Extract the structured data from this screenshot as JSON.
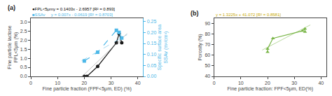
{
  "chart_data": [
    {
      "type": "line",
      "title": "(a)",
      "x_label": "Fine particle fraction (FPF<5μm, ED) (%)",
      "y_label": "Fine particle lactose\nFPL<5μm (%)",
      "y2_label": "Specific surface area\nSSAv (m²/cm³)",
      "xlim": [
        0,
        42
      ],
      "ylim": [
        0,
        3.2
      ],
      "y2lim": [
        0,
        0.265
      ],
      "xticks": [
        0,
        10,
        20,
        30,
        40
      ],
      "yticks": [
        {
          "value": 0,
          "label": "0.0"
        },
        0.5,
        {
          "value": 1.0,
          "label": "1.0"
        },
        1.5,
        {
          "value": 2.0,
          "label": "2.0"
        },
        2.5,
        {
          "value": 3.0,
          "label": "3.0"
        }
      ],
      "y2ticks": [
        {
          "value": 0,
          "label": "0.00"
        },
        0.05,
        {
          "value": 0.1,
          "label": "0.10"
        },
        0.15,
        {
          "value": 0.2,
          "label": "0.20"
        },
        0.25
      ],
      "grid": false,
      "series": [
        {
          "x": [
            20,
            21,
            25,
            32,
            33,
            34
          ],
          "values": [
            0.0,
            0.0,
            0.55,
            1.85,
            2.35,
            1.85
          ],
          "color": "#1a1a1a",
          "marker": "circle",
          "line_style": "solid"
        },
        {
          "x": [
            19,
            19.2138,
            36
          ],
          "values": [
            0,
            0,
            2.3551
          ],
          "color": "#888888",
          "marker": "none",
          "line_style": "solid"
        },
        {
          "x": [
            20,
            25,
            32,
            33,
            34
          ],
          "values": [
            0.07,
            0.11,
            0.21,
            0.2,
            0.175
          ],
          "color": "#4db8e8",
          "marker": "square",
          "line_style": "dashed",
          "axis": "y2"
        },
        {
          "x": [
            19,
            36
          ],
          "values": [
            0.0711,
            0.1901
          ],
          "color": "#4db8e8",
          "marker": "none",
          "line_style": "dashed",
          "axis": "y2"
        }
      ],
      "annotations": [
        {
          "text": "●FPL<5μmy = 0.1403x - 2.6957 [R² = 0.893]",
          "color": "#000000"
        },
        {
          "text": "■SSAv     y = 0.007x - 0.0619 [R² = 0.8703]",
          "color": "#4db8e8"
        }
      ]
    },
    {
      "type": "line",
      "title": "(b)",
      "x_label": "Fine particle fraction: FPF<5μm, ED(%)",
      "y_label": "Porosity (%)",
      "xlim": [
        0,
        42
      ],
      "ylim": [
        40,
        95
      ],
      "xticks": [
        0,
        10,
        20,
        30,
        40
      ],
      "yticks": [
        40,
        50,
        60,
        70,
        80,
        90
      ],
      "grid": false,
      "series": [
        {
          "x": [
            20,
            20,
            22,
            33,
            34,
            34
          ],
          "values": [
            63,
            66,
            76,
            83,
            85,
            82
          ],
          "color": "#7ab648",
          "marker": "triangle-up",
          "line_style": "solid"
        },
        {
          "x": [
            18,
            36
          ],
          "values": [
            64.877,
            88.682
          ],
          "color": "#7ab648",
          "marker": "none",
          "line_style": "solid"
        }
      ],
      "annotations": [
        {
          "text": "y = 1.3225x + 41.072 [R² = 0.8581]",
          "color": "#c8a800"
        }
      ]
    }
  ]
}
